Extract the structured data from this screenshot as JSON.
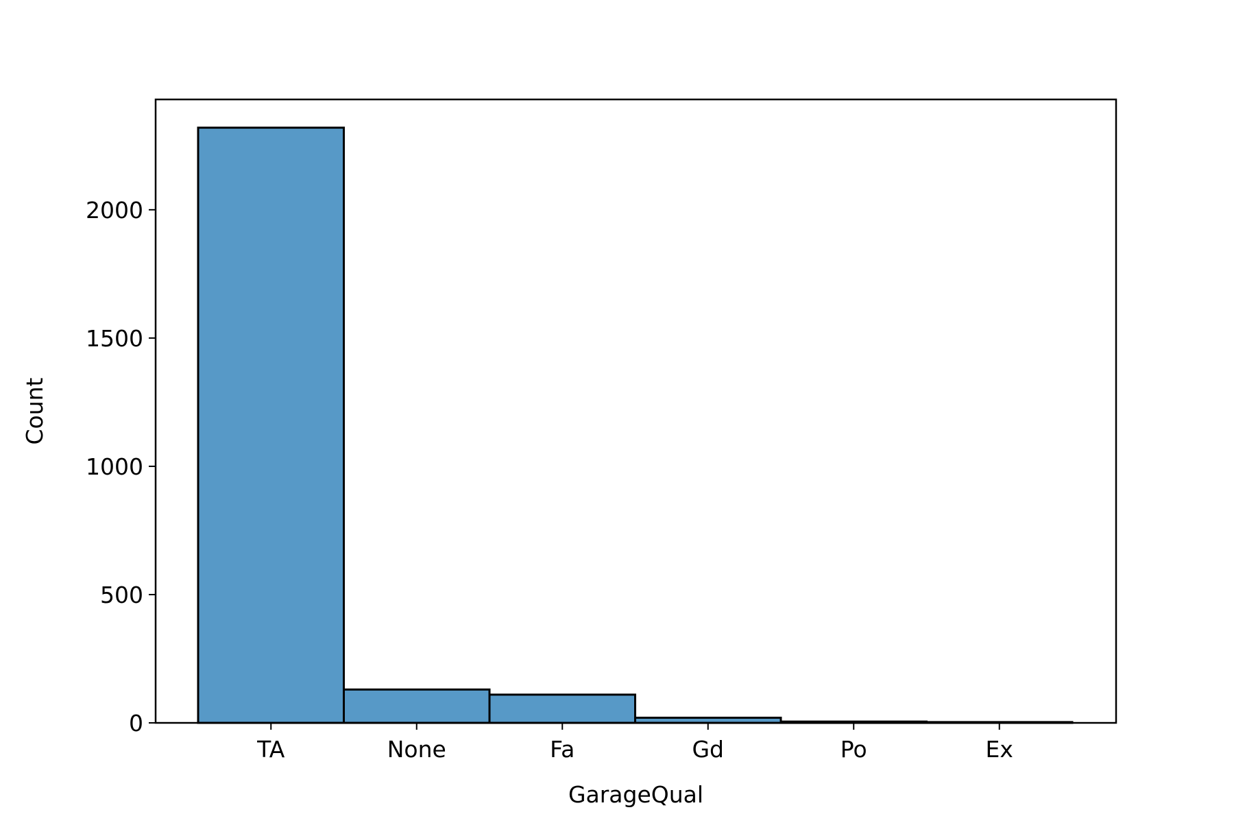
{
  "chart_data": {
    "type": "bar",
    "title": "",
    "xlabel": "GarageQual",
    "ylabel": "Count",
    "categories": [
      "TA",
      "None",
      "Fa",
      "Gd",
      "Po",
      "Ex"
    ],
    "values": [
      2320,
      130,
      110,
      20,
      5,
      3
    ],
    "ylim": [
      0,
      2430
    ],
    "yticks": [
      0,
      500,
      1000,
      1500,
      2000
    ],
    "ytick_labels": [
      "0",
      "500",
      "1000",
      "1500",
      "2000"
    ],
    "grid": false,
    "legend": "none",
    "bar_color": "#5799c7",
    "edge_color": "#000000"
  }
}
